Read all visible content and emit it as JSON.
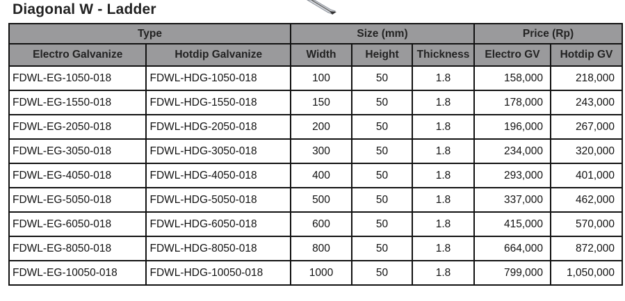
{
  "title": "Diagonal  W - Ladder",
  "header": {
    "groups": [
      "Type",
      "Size (mm)",
      "Price (Rp)"
    ],
    "columns": [
      "Electro Galvanize",
      "Hotdip Galvanize",
      "Width",
      "Height",
      "Thickness",
      "Electro GV",
      "Hotdip GV"
    ]
  },
  "rows": [
    [
      "FDWL-EG-1050-018",
      "FDWL-HDG-1050-018",
      "100",
      "50",
      "1.8",
      "158,000",
      "218,000"
    ],
    [
      "FDWL-EG-1550-018",
      "FDWL-HDG-1550-018",
      "150",
      "50",
      "1.8",
      "178,000",
      "243,000"
    ],
    [
      "FDWL-EG-2050-018",
      "FDWL-HDG-2050-018",
      "200",
      "50",
      "1.8",
      "196,000",
      "267,000"
    ],
    [
      "FDWL-EG-3050-018",
      "FDWL-HDG-3050-018",
      "300",
      "50",
      "1.8",
      "234,000",
      "320,000"
    ],
    [
      "FDWL-EG-4050-018",
      "FDWL-HDG-4050-018",
      "400",
      "50",
      "1.8",
      "293,000",
      "401,000"
    ],
    [
      "FDWL-EG-5050-018",
      "FDWL-HDG-5050-018",
      "500",
      "50",
      "1.8",
      "337,000",
      "462,000"
    ],
    [
      "FDWL-EG-6050-018",
      "FDWL-HDG-6050-018",
      "600",
      "50",
      "1.8",
      "415,000",
      "570,000"
    ],
    [
      "FDWL-EG-8050-018",
      "FDWL-HDG-8050-018",
      "800",
      "50",
      "1.8",
      "664,000",
      "872,000"
    ],
    [
      "FDWL-EG-10050-018",
      "FDWL-HDG-10050-018",
      "1000",
      "50",
      "1.8",
      "799,000",
      "1,050,000"
    ]
  ],
  "colors": {
    "header_bg": "#9a9a9c",
    "border": "#111111"
  }
}
